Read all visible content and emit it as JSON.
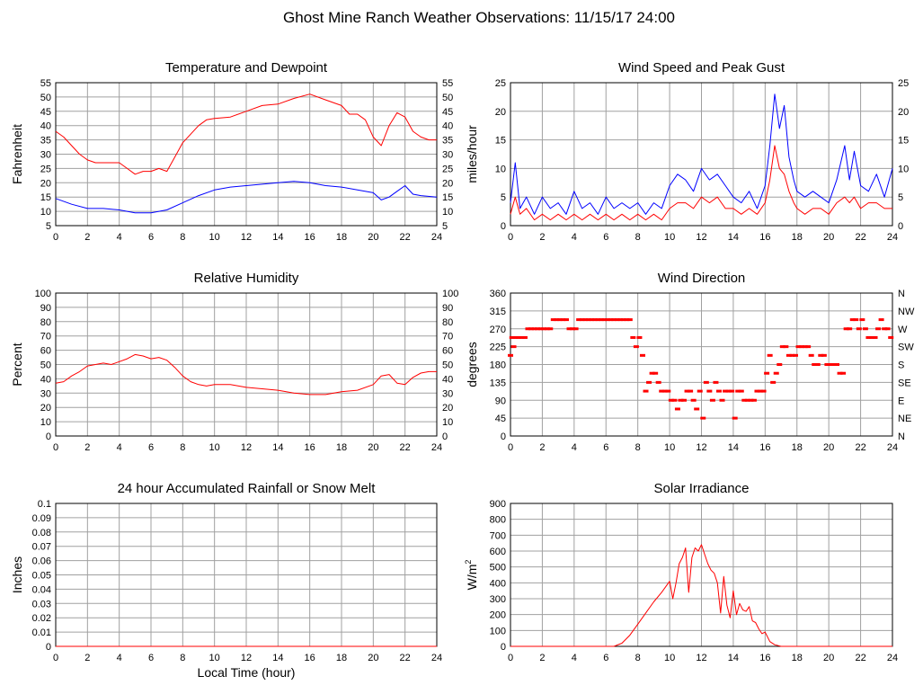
{
  "title": "Ghost Mine Ranch Weather Observations: 11/15/17 24:00",
  "chart_data": [
    {
      "id": "temp",
      "type": "line",
      "title": "Temperature and Dewpoint",
      "ylabel": "Fahrenheit",
      "xlabel": "",
      "xlim": [
        0,
        24
      ],
      "ylim": [
        5,
        55
      ],
      "xticks": [
        0,
        2,
        4,
        6,
        8,
        10,
        12,
        14,
        16,
        18,
        20,
        22,
        24
      ],
      "yticks": [
        5,
        10,
        15,
        20,
        25,
        30,
        35,
        40,
        45,
        50,
        55
      ],
      "right_ticks": true,
      "grid": true,
      "series": [
        {
          "color": "#ff0000",
          "style": "line",
          "x": [
            0,
            0.5,
            1,
            1.5,
            2,
            2.5,
            3,
            3.5,
            4,
            4.5,
            5,
            5.5,
            6,
            6.5,
            7,
            7.5,
            8,
            8.5,
            9,
            9.5,
            10,
            11,
            12,
            13,
            14,
            15,
            16,
            17,
            18,
            18.5,
            19,
            19.5,
            20,
            20.5,
            21,
            21.5,
            22,
            22.5,
            23,
            23.5,
            24
          ],
          "y": [
            38,
            36,
            33,
            30,
            28,
            27,
            27,
            27,
            27,
            25,
            23,
            24,
            24,
            25,
            24,
            29,
            34,
            37,
            40,
            42,
            42.5,
            43,
            45,
            47,
            47.5,
            49.5,
            51,
            49,
            47,
            44,
            44,
            42,
            36,
            33,
            40,
            44.5,
            43,
            38,
            36,
            35,
            35
          ]
        },
        {
          "color": "#0000ff",
          "style": "line",
          "x": [
            0,
            1,
            2,
            3,
            4,
            5,
            6,
            7,
            8,
            9,
            10,
            11,
            12,
            13,
            14,
            15,
            16,
            17,
            18,
            19,
            20,
            20.5,
            21,
            21.5,
            22,
            22.5,
            23,
            24
          ],
          "y": [
            14.5,
            12.5,
            11,
            11,
            10.5,
            9.5,
            9.5,
            10.5,
            13,
            15.5,
            17.5,
            18.5,
            19,
            19.5,
            20,
            20.5,
            20,
            19,
            18.5,
            17.5,
            16.5,
            14,
            15,
            17,
            19,
            16,
            15.5,
            15
          ]
        }
      ]
    },
    {
      "id": "wind",
      "type": "line",
      "title": "Wind Speed and Peak Gust",
      "ylabel": "miles/hour",
      "xlabel": "",
      "xlim": [
        0,
        24
      ],
      "ylim": [
        0,
        25
      ],
      "xticks": [
        0,
        2,
        4,
        6,
        8,
        10,
        12,
        14,
        16,
        18,
        20,
        22,
        24
      ],
      "yticks": [
        0,
        5,
        10,
        15,
        20,
        25
      ],
      "right_ticks": true,
      "grid": true,
      "series": [
        {
          "color": "#0000ff",
          "style": "line",
          "x": [
            0,
            0.3,
            0.6,
            1,
            1.5,
            2,
            2.5,
            3,
            3.5,
            4,
            4.5,
            5,
            5.5,
            6,
            6.5,
            7,
            7.5,
            8,
            8.5,
            9,
            9.5,
            10,
            10.5,
            11,
            11.5,
            12,
            12.5,
            13,
            13.5,
            14,
            14.5,
            15,
            15.5,
            16,
            16.3,
            16.6,
            16.9,
            17.2,
            17.5,
            17.8,
            18,
            18.5,
            19,
            19.5,
            20,
            20.5,
            21,
            21.3,
            21.6,
            22,
            22.5,
            23,
            23.5,
            24
          ],
          "y": [
            4,
            11,
            3,
            5,
            2,
            5,
            3,
            4,
            2,
            6,
            3,
            4,
            2,
            5,
            3,
            4,
            3,
            4,
            2,
            4,
            3,
            7,
            9,
            8,
            6,
            10,
            8,
            9,
            7,
            5,
            4,
            6,
            3,
            7,
            14,
            23,
            17,
            21,
            12,
            8,
            6,
            5,
            6,
            5,
            4,
            8,
            14,
            8,
            13,
            7,
            6,
            9,
            5,
            10
          ]
        },
        {
          "color": "#ff0000",
          "style": "line",
          "x": [
            0,
            0.3,
            0.6,
            1,
            1.5,
            2,
            2.5,
            3,
            3.5,
            4,
            4.5,
            5,
            5.5,
            6,
            6.5,
            7,
            7.5,
            8,
            8.5,
            9,
            9.5,
            10,
            10.5,
            11,
            11.5,
            12,
            12.5,
            13,
            13.5,
            14,
            14.5,
            15,
            15.5,
            16,
            16.3,
            16.6,
            16.9,
            17.2,
            17.5,
            17.8,
            18,
            18.5,
            19,
            19.5,
            20,
            20.5,
            21,
            21.3,
            21.6,
            22,
            22.5,
            23,
            23.5,
            24
          ],
          "y": [
            2,
            5,
            2,
            3,
            1,
            2,
            1,
            2,
            1,
            2,
            1,
            2,
            1,
            2,
            1,
            2,
            1,
            2,
            1,
            2,
            1,
            3,
            4,
            4,
            3,
            5,
            4,
            5,
            3,
            3,
            2,
            3,
            2,
            4,
            8,
            14,
            10,
            9,
            6,
            4,
            3,
            2,
            3,
            3,
            2,
            4,
            5,
            4,
            5,
            3,
            4,
            4,
            3,
            3
          ]
        }
      ]
    },
    {
      "id": "rh",
      "type": "line",
      "title": "Relative Humidity",
      "ylabel": "Percent",
      "xlabel": "",
      "xlim": [
        0,
        24
      ],
      "ylim": [
        0,
        100
      ],
      "xticks": [
        0,
        2,
        4,
        6,
        8,
        10,
        12,
        14,
        16,
        18,
        20,
        22,
        24
      ],
      "yticks": [
        0,
        10,
        20,
        30,
        40,
        50,
        60,
        70,
        80,
        90,
        100
      ],
      "right_ticks": true,
      "grid": true,
      "series": [
        {
          "color": "#ff0000",
          "style": "line",
          "x": [
            0,
            0.5,
            1,
            1.5,
            2,
            2.5,
            3,
            3.5,
            4,
            4.5,
            5,
            5.5,
            6,
            6.5,
            7,
            7.5,
            8,
            8.5,
            9,
            9.5,
            10,
            11,
            12,
            13,
            14,
            15,
            16,
            17,
            18,
            19,
            20,
            20.5,
            21,
            21.5,
            22,
            22.5,
            23,
            23.5,
            24
          ],
          "y": [
            37,
            38,
            42,
            45,
            49,
            50,
            51,
            50,
            52,
            54,
            57,
            56,
            54,
            55,
            53,
            48,
            42,
            38,
            36,
            35,
            36,
            36,
            34,
            33,
            32,
            30,
            29,
            29,
            31,
            32,
            36,
            42,
            43,
            37,
            36,
            41,
            44,
            45,
            45
          ]
        }
      ]
    },
    {
      "id": "dir",
      "type": "scatter",
      "title": "Wind Direction",
      "ylabel": "degrees",
      "xlabel": "",
      "xlim": [
        0,
        24
      ],
      "ylim": [
        0,
        360
      ],
      "xticks": [
        0,
        2,
        4,
        6,
        8,
        10,
        12,
        14,
        16,
        18,
        20,
        22,
        24
      ],
      "yticks": [
        0,
        45,
        90,
        135,
        180,
        225,
        270,
        315,
        360
      ],
      "right_ticklabels": [
        "N",
        "NE",
        "E",
        "SE",
        "S",
        "SW",
        "W",
        "NW",
        "N"
      ],
      "grid": true,
      "series": [
        {
          "color": "#ff0000",
          "style": "markers",
          "x": [
            0,
            0.1,
            0.2,
            0.3,
            0.5,
            0.7,
            0.9,
            1.1,
            1.3,
            1.5,
            1.7,
            1.9,
            2.1,
            2.3,
            2.5,
            2.7,
            2.9,
            3.1,
            3.3,
            3.5,
            3.7,
            3.9,
            4.1,
            4.3,
            4.5,
            4.7,
            4.9,
            5.1,
            5.3,
            5.5,
            5.7,
            5.9,
            6.1,
            6.3,
            6.5,
            6.7,
            6.9,
            7.1,
            7.3,
            7.5,
            7.7,
            7.9,
            8.1,
            8.3,
            8.5,
            8.7,
            8.9,
            9.1,
            9.3,
            9.5,
            9.7,
            9.9,
            10.1,
            10.3,
            10.5,
            10.7,
            10.9,
            11.1,
            11.3,
            11.5,
            11.7,
            11.9,
            12.1,
            12.3,
            12.5,
            12.7,
            12.9,
            13.1,
            13.3,
            13.5,
            13.7,
            13.9,
            14.1,
            14.3,
            14.5,
            14.7,
            14.9,
            15.1,
            15.3,
            15.5,
            15.7,
            15.9,
            16.1,
            16.3,
            16.5,
            16.7,
            16.9,
            17.1,
            17.3,
            17.5,
            17.7,
            17.9,
            18.1,
            18.3,
            18.5,
            18.7,
            18.9,
            19.1,
            19.3,
            19.5,
            19.7,
            19.9,
            20.1,
            20.3,
            20.5,
            20.7,
            20.9,
            21.1,
            21.3,
            21.5,
            21.7,
            21.9,
            22.1,
            22.3,
            22.5,
            22.7,
            22.9,
            23.1,
            23.3,
            23.5,
            23.7,
            23.9
          ],
          "y": [
            203,
            248,
            225,
            248,
            248,
            248,
            248,
            270,
            270,
            270,
            270,
            270,
            270,
            270,
            270,
            293,
            293,
            293,
            293,
            293,
            270,
            270,
            270,
            293,
            293,
            293,
            293,
            293,
            293,
            293,
            293,
            293,
            293,
            293,
            293,
            293,
            293,
            293,
            293,
            293,
            248,
            225,
            248,
            203,
            113,
            135,
            158,
            158,
            135,
            113,
            113,
            113,
            90,
            90,
            68,
            90,
            90,
            113,
            113,
            90,
            68,
            113,
            45,
            135,
            113,
            90,
            135,
            113,
            90,
            113,
            113,
            113,
            45,
            113,
            113,
            90,
            90,
            90,
            90,
            113,
            113,
            113,
            158,
            203,
            135,
            158,
            180,
            225,
            225,
            203,
            203,
            203,
            225,
            225,
            225,
            225,
            203,
            180,
            180,
            203,
            203,
            180,
            180,
            180,
            180,
            158,
            158,
            270,
            270,
            293,
            293,
            270,
            293,
            270,
            248,
            248,
            248,
            270,
            293,
            270,
            270,
            248
          ]
        }
      ]
    },
    {
      "id": "rain",
      "type": "line",
      "title": "24 hour Accumulated Rainfall or Snow Melt",
      "ylabel": "Inches",
      "xlabel": "Local Time (hour)",
      "xlim": [
        0,
        24
      ],
      "ylim": [
        0,
        0.1
      ],
      "xticks": [
        0,
        2,
        4,
        6,
        8,
        10,
        12,
        14,
        16,
        18,
        20,
        22,
        24
      ],
      "yticks": [
        0,
        0.01,
        0.02,
        0.03,
        0.04,
        0.05,
        0.06,
        0.07,
        0.08,
        0.09,
        0.1
      ],
      "right_ticks": false,
      "grid": true,
      "series": [
        {
          "color": "#ff0000",
          "style": "line",
          "x": [
            0,
            24
          ],
          "y": [
            0,
            0
          ]
        }
      ]
    },
    {
      "id": "solar",
      "type": "line",
      "title": "Solar Irradiance",
      "ylabel": "W/m",
      "ylabel_superscript": "2",
      "xlabel": "",
      "xlim": [
        0,
        24
      ],
      "ylim": [
        0,
        900
      ],
      "xticks": [
        0,
        2,
        4,
        6,
        8,
        10,
        12,
        14,
        16,
        18,
        20,
        22,
        24
      ],
      "yticks": [
        0,
        100,
        200,
        300,
        400,
        500,
        600,
        700,
        800,
        900
      ],
      "right_ticks": false,
      "grid": true,
      "series": [
        {
          "color": "#ff0000",
          "style": "line",
          "x": [
            0,
            6.5,
            7,
            7.5,
            8,
            8.5,
            9,
            9.5,
            10,
            10.2,
            10.4,
            10.6,
            10.8,
            11,
            11.2,
            11.4,
            11.6,
            11.8,
            12,
            12.2,
            12.4,
            12.6,
            12.8,
            13,
            13.2,
            13.4,
            13.6,
            13.8,
            14,
            14.2,
            14.4,
            14.6,
            14.8,
            15,
            15.2,
            15.4,
            15.6,
            15.8,
            16,
            16.3,
            16.6,
            17,
            24
          ],
          "y": [
            0,
            0,
            20,
            70,
            140,
            210,
            280,
            340,
            410,
            300,
            400,
            520,
            560,
            620,
            340,
            560,
            620,
            600,
            640,
            580,
            520,
            480,
            460,
            400,
            210,
            440,
            260,
            180,
            350,
            200,
            270,
            230,
            220,
            250,
            160,
            150,
            110,
            80,
            90,
            30,
            10,
            0,
            0
          ]
        }
      ]
    }
  ]
}
